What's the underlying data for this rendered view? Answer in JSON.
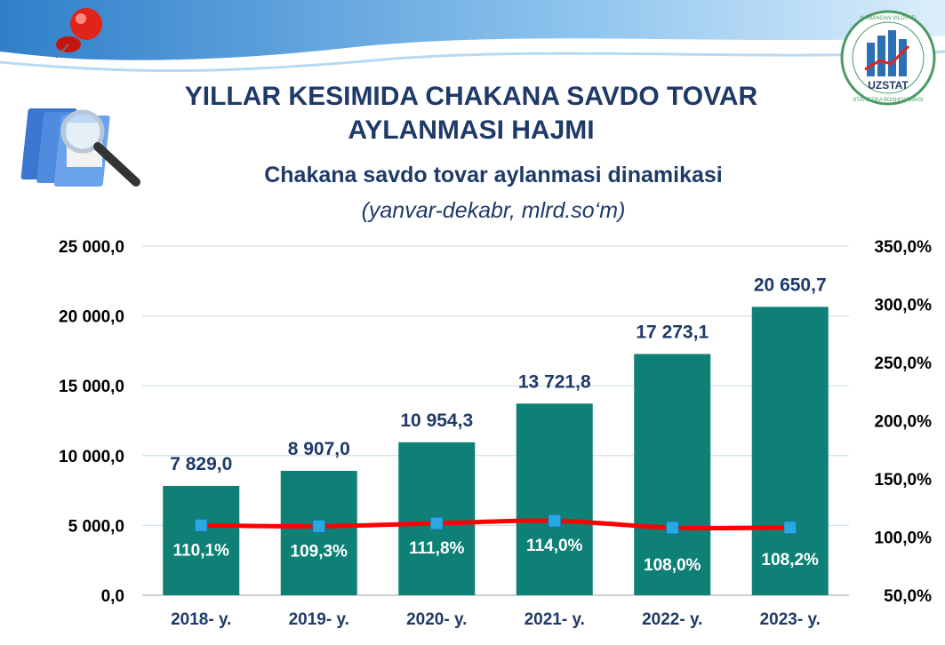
{
  "header": {
    "title_line1": "YILLAR KESIMIDA CHAKANA SAVDO TOVAR",
    "title_line2": "AYLANMASI HAJMI",
    "subtitle": "Chakana savdo tovar aylanmasi dinamikasi",
    "units": "(yanvar-dekabr, mlrd.so‘m)"
  },
  "logo": {
    "top_text": "NAMANGAN VILOYATI",
    "brand": "UZSTAT",
    "bottom_text": "STATISTIKA BOSHQARMASI"
  },
  "colors": {
    "bar": "#0e8076",
    "line": "#ff0000",
    "marker": "#29a9e1",
    "title": "#1f3a68"
  },
  "chart_data": {
    "type": "bar",
    "categories": [
      "2018- y.",
      "2019- y.",
      "2020- y.",
      "2021- y.",
      "2022- y.",
      "2023- y."
    ],
    "series": [
      {
        "values": [
          7829.0,
          8907.0,
          10954.3,
          13721.8,
          17273.1,
          20650.7
        ],
        "labels": [
          "7 829,0",
          "8 907,0",
          "10 954,3",
          "13 721,8",
          "17 273,1",
          "20 650,7"
        ]
      },
      {
        "type": "line",
        "axis": "right",
        "values": [
          110.1,
          109.3,
          111.8,
          114.0,
          108.0,
          108.2
        ],
        "labels": [
          "110,1%",
          "109,3%",
          "111,8%",
          "114,0%",
          "108,0%",
          "108,2%"
        ]
      }
    ],
    "ylim": [
      0,
      25000
    ],
    "yticks": [
      "0,0",
      "5 000,0",
      "10 000,0",
      "15 000,0",
      "20 000,0",
      "25 000,0"
    ],
    "y2lim": [
      50,
      350
    ],
    "y2ticks": [
      "50,0%",
      "100,0%",
      "150,0%",
      "200,0%",
      "250,0%",
      "300,0%",
      "350,0%"
    ],
    "grid": true
  }
}
